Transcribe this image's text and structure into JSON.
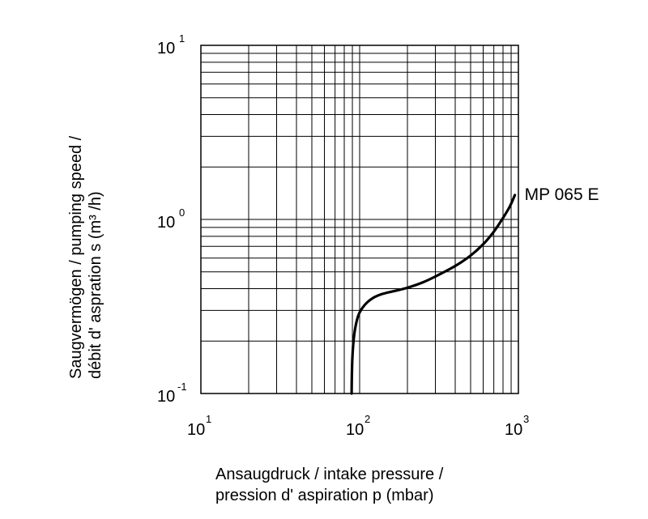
{
  "chart_data": {
    "type": "line",
    "x_scale": "log",
    "y_scale": "log",
    "xlim": [
      10,
      1000
    ],
    "ylim": [
      0.1,
      10
    ],
    "grid": true,
    "x_ticks": [
      {
        "base": "10",
        "exp": "1",
        "value": 10
      },
      {
        "base": "10",
        "exp": "2",
        "value": 100
      },
      {
        "base": "10",
        "exp": "3",
        "value": 1000
      }
    ],
    "y_ticks": [
      {
        "base": "10",
        "exp": "-1",
        "value": 0.1
      },
      {
        "base": "10",
        "exp": "0",
        "value": 1
      },
      {
        "base": "10",
        "exp": "1",
        "value": 10
      }
    ],
    "xlabel_lines": [
      "Ansaugdruck / intake pressure /",
      "pression d' aspiration p (mbar)"
    ],
    "ylabel_lines": [
      "Saugvermögen / pumping speed /",
      "débit d' aspration s (m³ /h)"
    ],
    "series": [
      {
        "name": "MP 065 E",
        "x": [
          89,
          89.3,
          90,
          91.5,
          94,
          98,
          104,
          112,
          122,
          135,
          150,
          170,
          200,
          250,
          300,
          400,
          500,
          600,
          700,
          800,
          880,
          950
        ],
        "y": [
          0.1,
          0.125,
          0.16,
          0.2,
          0.24,
          0.28,
          0.31,
          0.335,
          0.355,
          0.37,
          0.38,
          0.39,
          0.405,
          0.435,
          0.47,
          0.54,
          0.62,
          0.72,
          0.85,
          1.02,
          1.18,
          1.38
        ]
      }
    ]
  }
}
